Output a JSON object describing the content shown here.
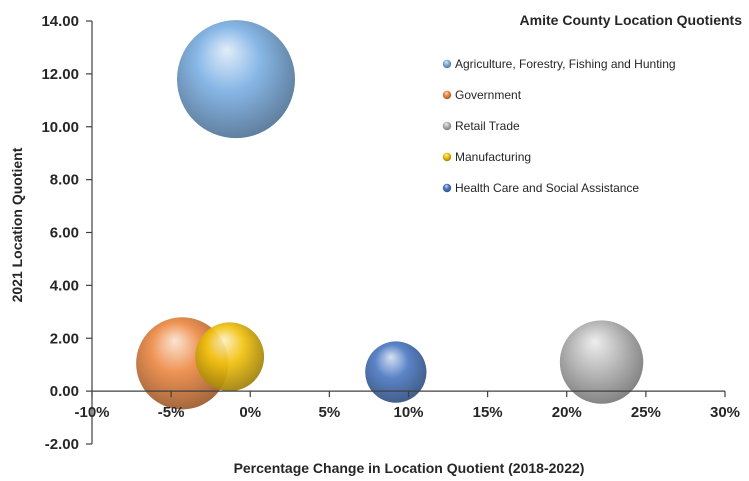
{
  "chart_data": {
    "type": "bubble",
    "title": "Amite County Location Quotients",
    "xlabel": "Percentage Change in Location Quotient (2018-2022)",
    "ylabel": "2021 Location Quotient",
    "xlim": [
      -0.1,
      0.3
    ],
    "ylim": [
      -2.0,
      14.0
    ],
    "x_ticks": [
      -0.1,
      -0.05,
      0.0,
      0.05,
      0.1,
      0.15,
      0.2,
      0.25,
      0.3
    ],
    "x_tick_labels": [
      "-10%",
      "-5%",
      "0%",
      "5%",
      "10%",
      "15%",
      "20%",
      "25%",
      "30%"
    ],
    "y_ticks": [
      -2,
      0,
      2,
      4,
      6,
      8,
      10,
      12,
      14
    ],
    "y_tick_labels": [
      "-2.00",
      "0.00",
      "2.00",
      "4.00",
      "6.00",
      "8.00",
      "10.00",
      "12.00",
      "14.00"
    ],
    "grid": false,
    "legend_position": "top-right",
    "series": [
      {
        "name": "Agriculture, Forestry, Fishing and Hunting",
        "x": -0.009,
        "y": 11.8,
        "size": 1.0,
        "color": "#7fb2e5"
      },
      {
        "name": "Government",
        "x": -0.043,
        "y": 1.05,
        "size": 0.61,
        "color": "#ed8b47"
      },
      {
        "name": "Retail Trade",
        "x": 0.222,
        "y": 1.1,
        "size": 0.5,
        "color": "#b8b8b8"
      },
      {
        "name": "Manufacturing",
        "x": -0.013,
        "y": 1.3,
        "size": 0.34,
        "color": "#f2c20f"
      },
      {
        "name": "Health Care and Social Assistance",
        "x": 0.092,
        "y": 0.72,
        "size": 0.27,
        "color": "#4f7bc4"
      }
    ]
  }
}
